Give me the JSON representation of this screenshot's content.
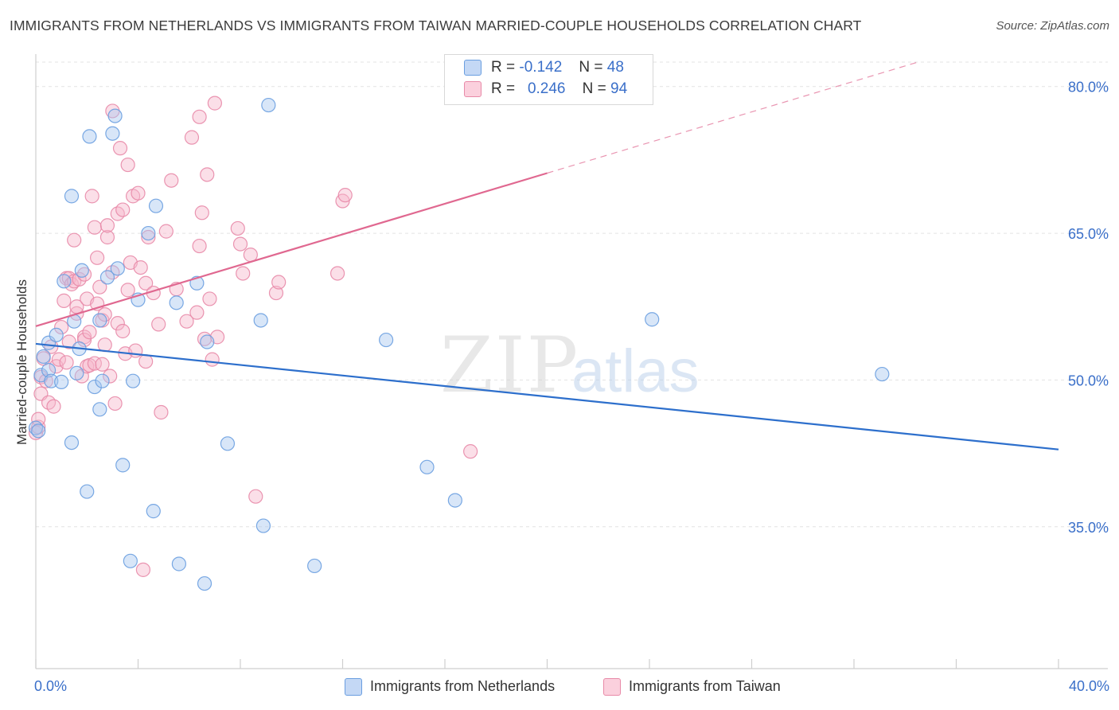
{
  "title": "IMMIGRANTS FROM NETHERLANDS VS IMMIGRANTS FROM TAIWAN MARRIED-COUPLE HOUSEHOLDS CORRELATION CHART",
  "source": "Source: ZipAtlas.com",
  "watermark": {
    "zip": "ZIP",
    "atlas": "atlas"
  },
  "legend": {
    "r_label": "R =",
    "n_label": "N =",
    "rows": [
      {
        "r": "-0.142",
        "n": "48",
        "color": "#a9c7f0"
      },
      {
        "r": "0.246",
        "n": "94",
        "color": "#f7b8cb"
      }
    ]
  },
  "chart_data": {
    "type": "scatter",
    "title": "IMMIGRANTS FROM NETHERLANDS VS IMMIGRANTS FROM TAIWAN MARRIED-COUPLE HOUSEHOLDS CORRELATION CHART",
    "xlabel": "",
    "ylabel": "Married-couple Households",
    "xlim": [
      0,
      40
    ],
    "ylim": [
      20.5,
      82.5
    ],
    "x_tick_labels": [
      "0.0%",
      "40.0%"
    ],
    "y_ticks": [
      35,
      50,
      65,
      80
    ],
    "y_tick_labels": [
      "35.0%",
      "50.0%",
      "65.0%",
      "80.0%"
    ],
    "grid": true,
    "legend_position": "top-center",
    "series": [
      {
        "name": "Immigrants from Netherlands",
        "color": "#6a9ee0",
        "fill": "#a9c7f0",
        "line_color": "#2d6fcc",
        "trend": {
          "x": [
            0,
            40
          ],
          "y": [
            53.7,
            42.9
          ],
          "dash_from": 40
        },
        "points": [
          [
            0.0,
            45.1
          ],
          [
            0.2,
            50.5
          ],
          [
            0.3,
            52.4
          ],
          [
            0.5,
            53.8
          ],
          [
            0.5,
            51.0
          ],
          [
            0.6,
            49.9
          ],
          [
            0.8,
            54.6
          ],
          [
            1.0,
            49.8
          ],
          [
            1.1,
            60.1
          ],
          [
            1.4,
            43.6
          ],
          [
            1.4,
            68.8
          ],
          [
            1.5,
            56.0
          ],
          [
            1.6,
            50.7
          ],
          [
            1.7,
            53.2
          ],
          [
            1.8,
            61.2
          ],
          [
            2.0,
            38.6
          ],
          [
            2.1,
            74.9
          ],
          [
            2.3,
            49.3
          ],
          [
            2.5,
            47.0
          ],
          [
            2.5,
            56.1
          ],
          [
            2.6,
            49.9
          ],
          [
            2.8,
            60.5
          ],
          [
            3.0,
            75.2
          ],
          [
            3.1,
            77.0
          ],
          [
            3.2,
            61.4
          ],
          [
            3.4,
            41.3
          ],
          [
            3.7,
            31.5
          ],
          [
            3.8,
            49.9
          ],
          [
            4.0,
            58.2
          ],
          [
            4.4,
            65.0
          ],
          [
            4.6,
            36.6
          ],
          [
            4.7,
            67.8
          ],
          [
            5.5,
            57.9
          ],
          [
            5.6,
            31.2
          ],
          [
            6.3,
            59.9
          ],
          [
            6.6,
            29.2
          ],
          [
            6.7,
            53.9
          ],
          [
            7.5,
            43.5
          ],
          [
            8.8,
            56.1
          ],
          [
            8.9,
            35.1
          ],
          [
            9.1,
            78.1
          ],
          [
            10.9,
            31.0
          ],
          [
            13.7,
            54.1
          ],
          [
            15.3,
            41.1
          ],
          [
            16.4,
            37.7
          ],
          [
            24.1,
            56.2
          ],
          [
            33.1,
            50.6
          ],
          [
            0.1,
            44.8
          ]
        ]
      },
      {
        "name": "Immigrants from Taiwan",
        "color": "#e88aa8",
        "fill": "#f7b8cb",
        "line_color": "#e06890",
        "trend": {
          "x": [
            0,
            40
          ],
          "y": [
            55.5,
            86.8
          ],
          "dash_from": 20
        }
      }
    ]
  }
}
